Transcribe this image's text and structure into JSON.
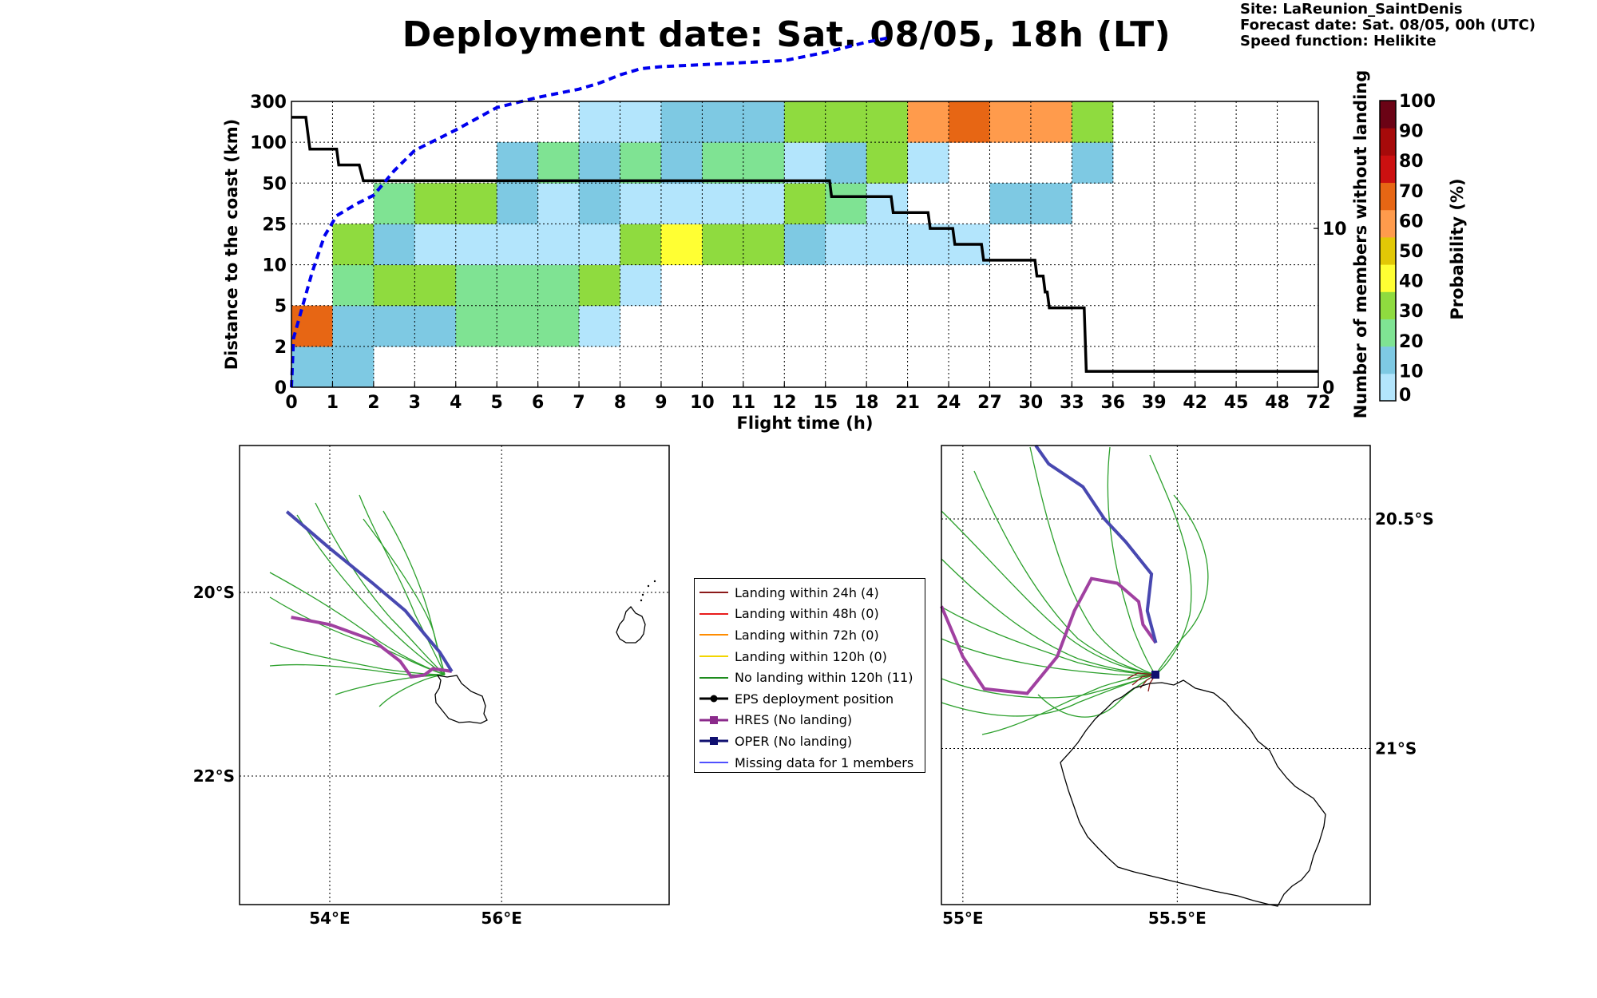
{
  "header": {
    "title": "Deployment date: Sat. 08/05, 18h (LT)",
    "site": "Site: LaReunion_SaintDenis",
    "forecast": "Forecast date: Sat. 08/05, 00h (UTC)",
    "speed": "Speed function: Helikite"
  },
  "chart_data": [
    {
      "type": "heatmap",
      "xlabel": "Flight time (h)",
      "ylabel": "Distance to the coast (km)",
      "ylabel_right": "Number of members without landing",
      "colorbar_label": "Probability (%)",
      "x_ticks": [
        "0",
        "1",
        "2",
        "3",
        "4",
        "5",
        "6",
        "7",
        "8",
        "9",
        "10",
        "11",
        "12",
        "15",
        "18",
        "21",
        "24",
        "27",
        "30",
        "33",
        "36",
        "39",
        "42",
        "45",
        "48",
        "72"
      ],
      "y_ticks": [
        "0",
        "2",
        "5",
        "10",
        "25",
        "50",
        "100",
        "300"
      ],
      "right_ticks": [
        {
          "label": "0",
          "value": 0
        },
        {
          "label": "10",
          "value": 10
        }
      ],
      "right_ylim": [
        0,
        18
      ],
      "grid": true,
      "colorbar": {
        "ticks": [
          "0",
          "10",
          "20",
          "30",
          "40",
          "50",
          "60",
          "70",
          "80",
          "90",
          "100"
        ],
        "colors": [
          "#b3e5fc",
          "#7ec9e3",
          "#7fe393",
          "#8fdb3f",
          "#ffff33",
          "#e2c806",
          "#ff9b4c",
          "#e76614",
          "#cc1010",
          "#a60a0a",
          "#6b0315"
        ]
      },
      "cells": [
        {
          "col": 0,
          "row": 0,
          "prob": 10
        },
        {
          "col": 1,
          "row": 0,
          "prob": 10
        },
        {
          "col": 0,
          "row": 1,
          "prob": 70
        },
        {
          "col": 1,
          "row": 1,
          "prob": 10
        },
        {
          "col": 2,
          "row": 1,
          "prob": 10
        },
        {
          "col": 3,
          "row": 1,
          "prob": 10
        },
        {
          "col": 4,
          "row": 1,
          "prob": 20
        },
        {
          "col": 5,
          "row": 1,
          "prob": 20
        },
        {
          "col": 6,
          "row": 1,
          "prob": 20
        },
        {
          "col": 7,
          "row": 1,
          "prob": 0
        },
        {
          "col": 1,
          "row": 2,
          "prob": 20
        },
        {
          "col": 2,
          "row": 2,
          "prob": 30
        },
        {
          "col": 3,
          "row": 2,
          "prob": 30
        },
        {
          "col": 4,
          "row": 2,
          "prob": 20
        },
        {
          "col": 5,
          "row": 2,
          "prob": 20
        },
        {
          "col": 6,
          "row": 2,
          "prob": 20
        },
        {
          "col": 7,
          "row": 2,
          "prob": 30
        },
        {
          "col": 8,
          "row": 2,
          "prob": 0
        },
        {
          "col": 1,
          "row": 3,
          "prob": 30
        },
        {
          "col": 2,
          "row": 3,
          "prob": 10
        },
        {
          "col": 3,
          "row": 3,
          "prob": 0
        },
        {
          "col": 4,
          "row": 3,
          "prob": 0
        },
        {
          "col": 5,
          "row": 3,
          "prob": 0
        },
        {
          "col": 6,
          "row": 3,
          "prob": 0
        },
        {
          "col": 7,
          "row": 3,
          "prob": 0
        },
        {
          "col": 8,
          "row": 3,
          "prob": 30
        },
        {
          "col": 9,
          "row": 3,
          "prob": 40
        },
        {
          "col": 10,
          "row": 3,
          "prob": 30
        },
        {
          "col": 11,
          "row": 3,
          "prob": 30
        },
        {
          "col": 12,
          "row": 3,
          "prob": 10
        },
        {
          "col": 13,
          "row": 3,
          "prob": 0
        },
        {
          "col": 14,
          "row": 3,
          "prob": 0
        },
        {
          "col": 15,
          "row": 3,
          "prob": 0
        },
        {
          "col": 16,
          "row": 3,
          "prob": 0
        },
        {
          "col": 2,
          "row": 4,
          "prob": 20
        },
        {
          "col": 3,
          "row": 4,
          "prob": 30
        },
        {
          "col": 4,
          "row": 4,
          "prob": 30
        },
        {
          "col": 5,
          "row": 4,
          "prob": 10
        },
        {
          "col": 6,
          "row": 4,
          "prob": 0
        },
        {
          "col": 7,
          "row": 4,
          "prob": 10
        },
        {
          "col": 8,
          "row": 4,
          "prob": 0
        },
        {
          "col": 9,
          "row": 4,
          "prob": 0
        },
        {
          "col": 10,
          "row": 4,
          "prob": 0
        },
        {
          "col": 11,
          "row": 4,
          "prob": 0
        },
        {
          "col": 12,
          "row": 4,
          "prob": 30
        },
        {
          "col": 13,
          "row": 4,
          "prob": 20
        },
        {
          "col": 14,
          "row": 4,
          "prob": 0
        },
        {
          "col": 17,
          "row": 4,
          "prob": 10
        },
        {
          "col": 18,
          "row": 4,
          "prob": 10
        },
        {
          "col": 5,
          "row": 5,
          "prob": 10
        },
        {
          "col": 6,
          "row": 5,
          "prob": 20
        },
        {
          "col": 7,
          "row": 5,
          "prob": 10
        },
        {
          "col": 8,
          "row": 5,
          "prob": 20
        },
        {
          "col": 9,
          "row": 5,
          "prob": 10
        },
        {
          "col": 10,
          "row": 5,
          "prob": 20
        },
        {
          "col": 11,
          "row": 5,
          "prob": 20
        },
        {
          "col": 12,
          "row": 5,
          "prob": 0
        },
        {
          "col": 13,
          "row": 5,
          "prob": 10
        },
        {
          "col": 14,
          "row": 5,
          "prob": 30
        },
        {
          "col": 15,
          "row": 5,
          "prob": 0
        },
        {
          "col": 19,
          "row": 5,
          "prob": 10
        },
        {
          "col": 7,
          "row": 6,
          "prob": 0
        },
        {
          "col": 8,
          "row": 6,
          "prob": 0
        },
        {
          "col": 9,
          "row": 6,
          "prob": 10
        },
        {
          "col": 10,
          "row": 6,
          "prob": 10
        },
        {
          "col": 11,
          "row": 6,
          "prob": 10
        },
        {
          "col": 12,
          "row": 6,
          "prob": 30
        },
        {
          "col": 13,
          "row": 6,
          "prob": 30
        },
        {
          "col": 14,
          "row": 6,
          "prob": 30
        },
        {
          "col": 15,
          "row": 6,
          "prob": 60
        },
        {
          "col": 16,
          "row": 6,
          "prob": 70
        },
        {
          "col": 17,
          "row": 6,
          "prob": 60
        },
        {
          "col": 18,
          "row": 6,
          "prob": 60
        },
        {
          "col": 19,
          "row": 6,
          "prob": 30
        }
      ],
      "series": [
        {
          "kind": "step",
          "color": "#000000",
          "points": [
            [
              0,
              17
            ],
            [
              0.35,
              17
            ],
            [
              0.45,
              15
            ],
            [
              1.1,
              15
            ],
            [
              1.15,
              14
            ],
            [
              1.65,
              14
            ],
            [
              1.75,
              13
            ],
            [
              13.1,
              13
            ],
            [
              13.15,
              12
            ],
            [
              14.6,
              12
            ],
            [
              14.65,
              11
            ],
            [
              15.5,
              11
            ],
            [
              15.55,
              10
            ],
            [
              16.1,
              10
            ],
            [
              16.15,
              9
            ],
            [
              16.8,
              9
            ],
            [
              16.85,
              8
            ],
            [
              18.1,
              8
            ],
            [
              18.15,
              7
            ],
            [
              18.3,
              7
            ],
            [
              18.35,
              6
            ],
            [
              18.4,
              6
            ],
            [
              18.45,
              5
            ],
            [
              19.3,
              5
            ],
            [
              19.35,
              1
            ],
            [
              25,
              1
            ]
          ]
        },
        {
          "kind": "dashed",
          "color": "#0000ee",
          "points": [
            [
              0,
              0
            ],
            [
              0.05,
              1.2
            ],
            [
              0.5,
              2.8
            ],
            [
              0.8,
              3.7
            ],
            [
              1.1,
              4.2
            ],
            [
              1.6,
              4.5
            ],
            [
              2,
              4.7
            ],
            [
              2.5,
              5.3
            ],
            [
              3,
              5.8
            ],
            [
              4,
              6.3
            ],
            [
              5,
              6.85
            ],
            [
              6,
              7.1
            ],
            [
              7,
              7.3
            ],
            [
              7.5,
              7.45
            ],
            [
              8,
              7.65
            ],
            [
              8.5,
              7.8
            ],
            [
              9,
              7.85
            ],
            [
              10,
              7.9
            ],
            [
              11,
              7.95
            ],
            [
              12,
              8.0
            ],
            [
              13,
              8.2
            ],
            [
              14,
              8.45
            ],
            [
              14.5,
              8.55
            ]
          ]
        }
      ]
    },
    {
      "type": "map",
      "name": "overview-map",
      "lon_labels": [
        "54°E",
        "56°E"
      ],
      "lat_labels": [
        "20°S",
        "22°S"
      ],
      "lon_range": [
        52.95,
        57.95
      ],
      "lat_range": [
        -23.4,
        -18.4
      ],
      "tracks": [
        {
          "name": "HRES",
          "color": "#a040a0",
          "points": [
            [
              53.55,
              -20.27
            ],
            [
              54,
              -20.35
            ],
            [
              54.5,
              -20.52
            ],
            [
              54.82,
              -20.75
            ],
            [
              54.95,
              -20.92
            ],
            [
              55.1,
              -20.9
            ],
            [
              55.2,
              -20.83
            ],
            [
              55.42,
              -20.86
            ]
          ]
        },
        {
          "name": "OPER",
          "color": "#4848b0",
          "points": [
            [
              53.5,
              -19.12
            ],
            [
              54,
              -19.52
            ],
            [
              54.5,
              -19.9
            ],
            [
              54.88,
              -20.2
            ],
            [
              55.1,
              -20.45
            ],
            [
              55.28,
              -20.65
            ],
            [
              55.42,
              -20.86
            ]
          ]
        }
      ]
    },
    {
      "type": "map",
      "name": "zoom-map",
      "lon_labels": [
        "55°E",
        "55.5°E"
      ],
      "lat_labels": [
        "20.5°S",
        "21°S"
      ],
      "lon_range": [
        54.95,
        55.95
      ],
      "lat_range": [
        -21.34,
        -20.34
      ],
      "tracks": [
        {
          "name": "HRES",
          "color": "#a040a0",
          "points": [
            [
              54.95,
              -20.69
            ],
            [
              55.0,
              -20.8
            ],
            [
              55.05,
              -20.87
            ],
            [
              55.15,
              -20.88
            ],
            [
              55.22,
              -20.8
            ],
            [
              55.26,
              -20.7
            ],
            [
              55.3,
              -20.63
            ],
            [
              55.36,
              -20.64
            ],
            [
              55.41,
              -20.68
            ],
            [
              55.42,
              -20.73
            ],
            [
              55.45,
              -20.77
            ]
          ]
        },
        {
          "name": "OPER",
          "color": "#4848b0",
          "points": [
            [
              55.17,
              -20.34
            ],
            [
              55.2,
              -20.38
            ],
            [
              55.28,
              -20.43
            ],
            [
              55.33,
              -20.5
            ],
            [
              55.38,
              -20.55
            ],
            [
              55.44,
              -20.62
            ],
            [
              55.43,
              -20.7
            ],
            [
              55.45,
              -20.77
            ]
          ]
        }
      ]
    }
  ],
  "legend": {
    "items": [
      {
        "label": "Landing within 24h (4)",
        "color": "#8b1a1a",
        "marker": "line"
      },
      {
        "label": "Landing within 48h (0)",
        "color": "#e81c1c",
        "marker": "line"
      },
      {
        "label": "Landing within 72h (0)",
        "color": "#ff8c00",
        "marker": "line"
      },
      {
        "label": "Landing within 120h (0)",
        "color": "#f2d500",
        "marker": "line"
      },
      {
        "label": "No landing within 120h (11)",
        "color": "#1e8c1e",
        "marker": "line"
      },
      {
        "label": "EPS deployment position",
        "color": "#000000",
        "marker": "dot"
      },
      {
        "label": "HRES (No landing)",
        "color": "#8b2a8b",
        "marker": "square"
      },
      {
        "label": "OPER (No landing)",
        "color": "#101070",
        "marker": "square"
      },
      {
        "label": "Missing data for 1 members",
        "color": "#5050ff",
        "marker": "line"
      }
    ]
  }
}
